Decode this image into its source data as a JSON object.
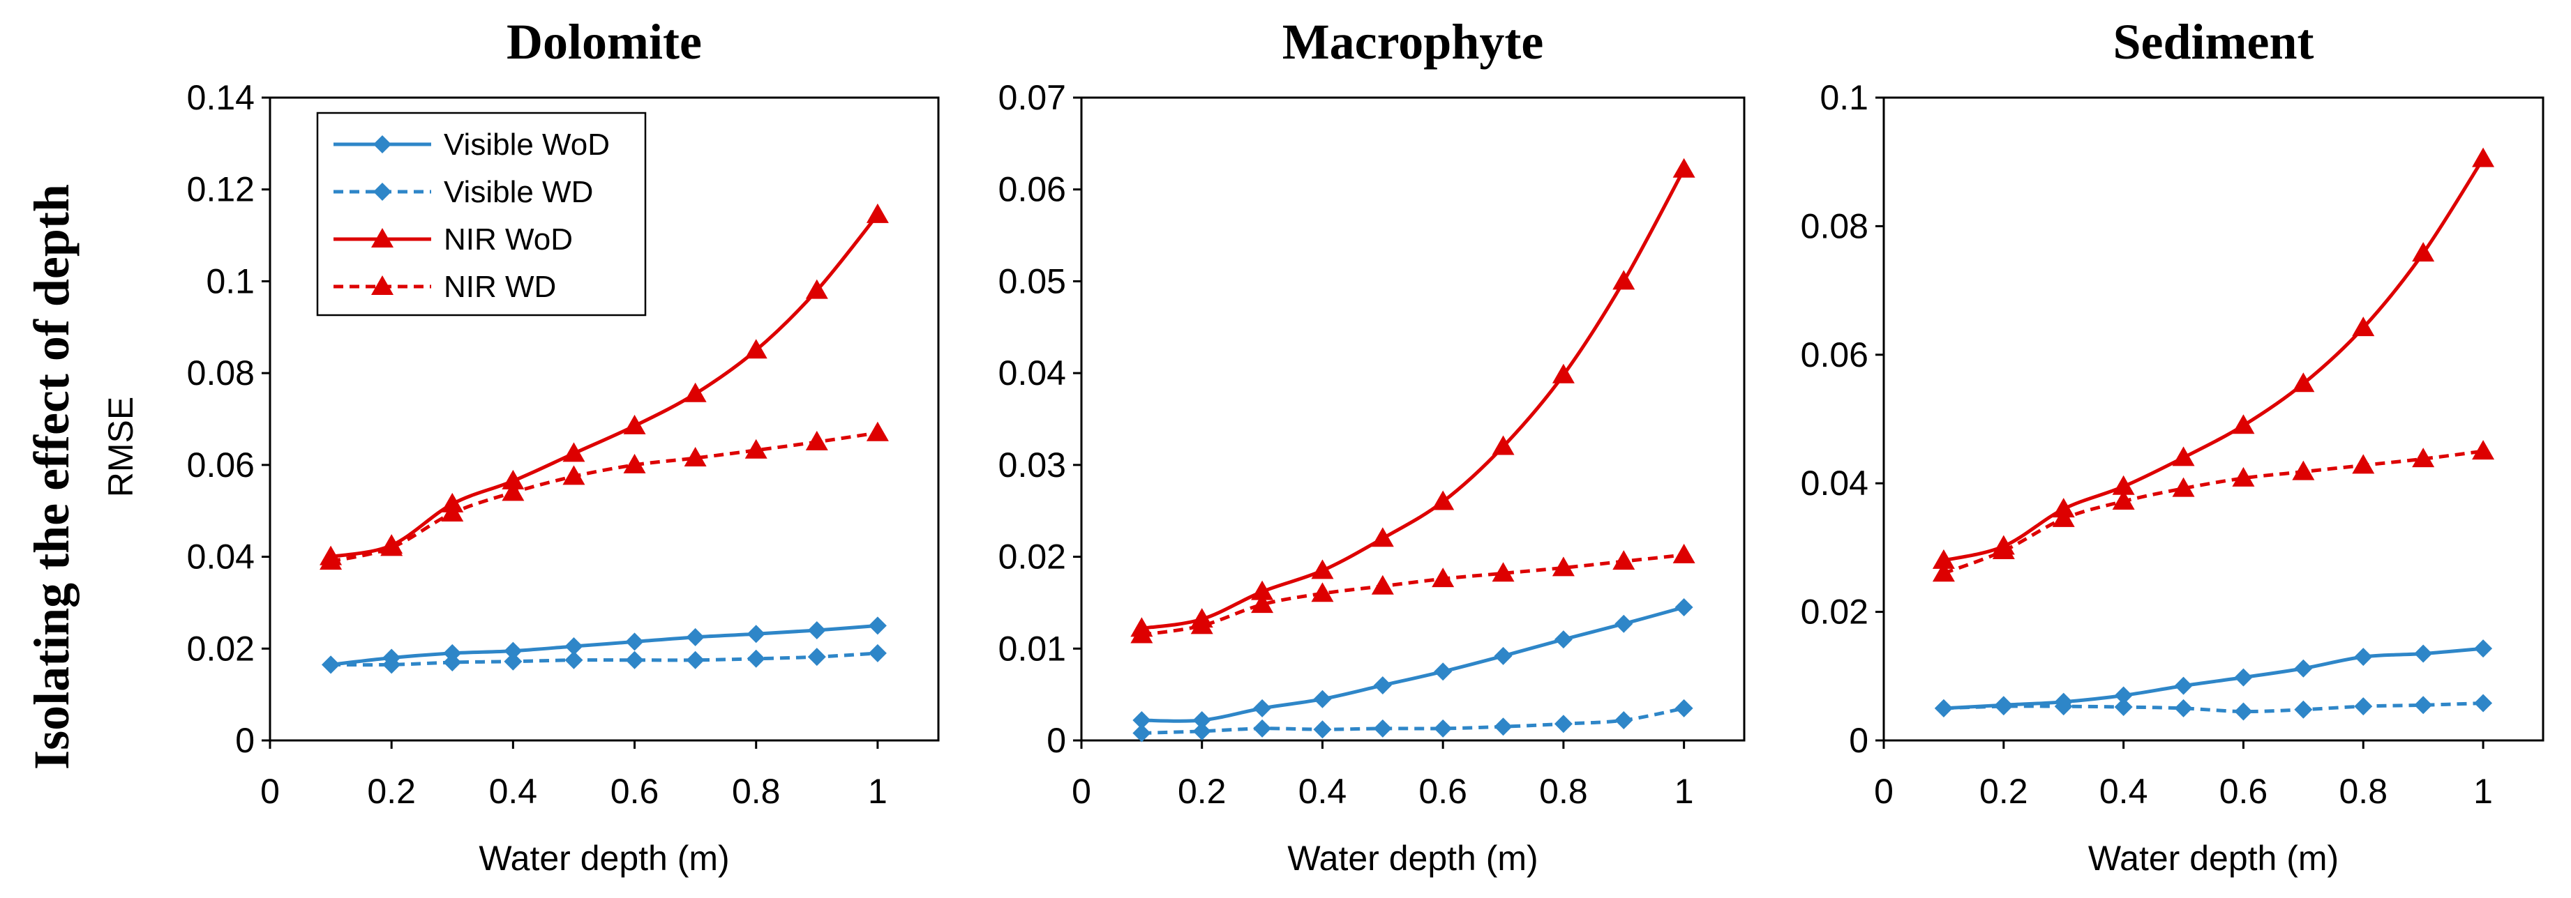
{
  "row_label": "Isolating the effect of depth",
  "colors": {
    "visible": "#2e86c8",
    "nir": "#dd0000"
  },
  "legend": {
    "visible_wod": "Visible WoD",
    "visible_wd": "Visible WD",
    "nir_wod": "NIR WoD",
    "nir_wd": "NIR WD"
  },
  "chart_data": [
    {
      "type": "line",
      "title": "Dolomite",
      "xlabel": "Water depth (m)",
      "ylabel": "RMSE",
      "xlim": [
        0,
        1.1
      ],
      "ylim": [
        0,
        0.14
      ],
      "xticks": [
        "0",
        "0.2",
        "0.4",
        "0.6",
        "0.8",
        "1"
      ],
      "yticks": [
        "0",
        "0.02",
        "0.04",
        "0.06",
        "0.08",
        "0.1",
        "0.12",
        "0.14"
      ],
      "x": [
        0.1,
        0.2,
        0.3,
        0.4,
        0.5,
        0.6,
        0.7,
        0.8,
        0.9,
        1.0
      ],
      "series": [
        {
          "name": "Visible WoD",
          "values": [
            0.0165,
            0.018,
            0.019,
            0.0195,
            0.0205,
            0.0215,
            0.0225,
            0.0232,
            0.024,
            0.025
          ]
        },
        {
          "name": "Visible WD",
          "values": [
            0.0165,
            0.0165,
            0.017,
            0.0172,
            0.0175,
            0.0175,
            0.0175,
            0.0178,
            0.0182,
            0.019
          ]
        },
        {
          "name": "NIR WoD",
          "values": [
            0.04,
            0.0425,
            0.0515,
            0.0565,
            0.0625,
            0.0685,
            0.0755,
            0.085,
            0.098,
            0.1145
          ]
        },
        {
          "name": "NIR WD",
          "values": [
            0.039,
            0.042,
            0.0495,
            0.054,
            0.0575,
            0.06,
            0.0615,
            0.0632,
            0.065,
            0.067
          ]
        }
      ]
    },
    {
      "type": "line",
      "title": "Macrophyte",
      "xlabel": "Water depth (m)",
      "ylabel": "",
      "xlim": [
        0,
        1.1
      ],
      "ylim": [
        0,
        0.07
      ],
      "xticks": [
        "0",
        "0.2",
        "0.4",
        "0.6",
        "0.8",
        "1"
      ],
      "yticks": [
        "0",
        "0.01",
        "0.02",
        "0.03",
        "0.04",
        "0.05",
        "0.06",
        "0.07"
      ],
      "x": [
        0.1,
        0.2,
        0.3,
        0.4,
        0.5,
        0.6,
        0.7,
        0.8,
        0.9,
        1.0
      ],
      "series": [
        {
          "name": "Visible WoD",
          "values": [
            0.0022,
            0.0022,
            0.0035,
            0.0045,
            0.006,
            0.0075,
            0.0092,
            0.011,
            0.0127,
            0.0145
          ]
        },
        {
          "name": "Visible WD",
          "values": [
            0.0008,
            0.001,
            0.0013,
            0.0012,
            0.0013,
            0.0013,
            0.0015,
            0.0018,
            0.0022,
            0.0035
          ]
        },
        {
          "name": "NIR WoD",
          "values": [
            0.0122,
            0.0132,
            0.0162,
            0.0185,
            0.022,
            0.026,
            0.032,
            0.0398,
            0.05,
            0.0622
          ]
        },
        {
          "name": "NIR WD",
          "values": [
            0.0115,
            0.0125,
            0.0148,
            0.016,
            0.0168,
            0.0176,
            0.0182,
            0.0188,
            0.0195,
            0.0202
          ]
        }
      ]
    },
    {
      "type": "line",
      "title": "Sediment",
      "xlabel": "Water depth (m)",
      "ylabel": "",
      "xlim": [
        0,
        1.1
      ],
      "ylim": [
        0,
        0.1
      ],
      "xticks": [
        "0",
        "0.2",
        "0.4",
        "0.6",
        "0.8",
        "1"
      ],
      "yticks": [
        "0",
        "0.02",
        "0.04",
        "0.06",
        "0.08",
        "0.1"
      ],
      "x": [
        0.1,
        0.2,
        0.3,
        0.4,
        0.5,
        0.6,
        0.7,
        0.8,
        0.9,
        1.0
      ],
      "series": [
        {
          "name": "Visible WoD",
          "values": [
            0.005,
            0.0055,
            0.006,
            0.007,
            0.0085,
            0.0098,
            0.0112,
            0.013,
            0.0135,
            0.0143
          ]
        },
        {
          "name": "Visible WD",
          "values": [
            0.005,
            0.0053,
            0.0053,
            0.0052,
            0.005,
            0.0045,
            0.0048,
            0.0053,
            0.0055,
            0.0058
          ]
        },
        {
          "name": "NIR WoD",
          "values": [
            0.028,
            0.0302,
            0.036,
            0.0395,
            0.044,
            0.049,
            0.0555,
            0.0642,
            0.0758,
            0.0905
          ]
        },
        {
          "name": "NIR WD",
          "values": [
            0.026,
            0.0295,
            0.0345,
            0.0372,
            0.0392,
            0.0408,
            0.0418,
            0.0428,
            0.0438,
            0.045
          ]
        }
      ]
    }
  ]
}
